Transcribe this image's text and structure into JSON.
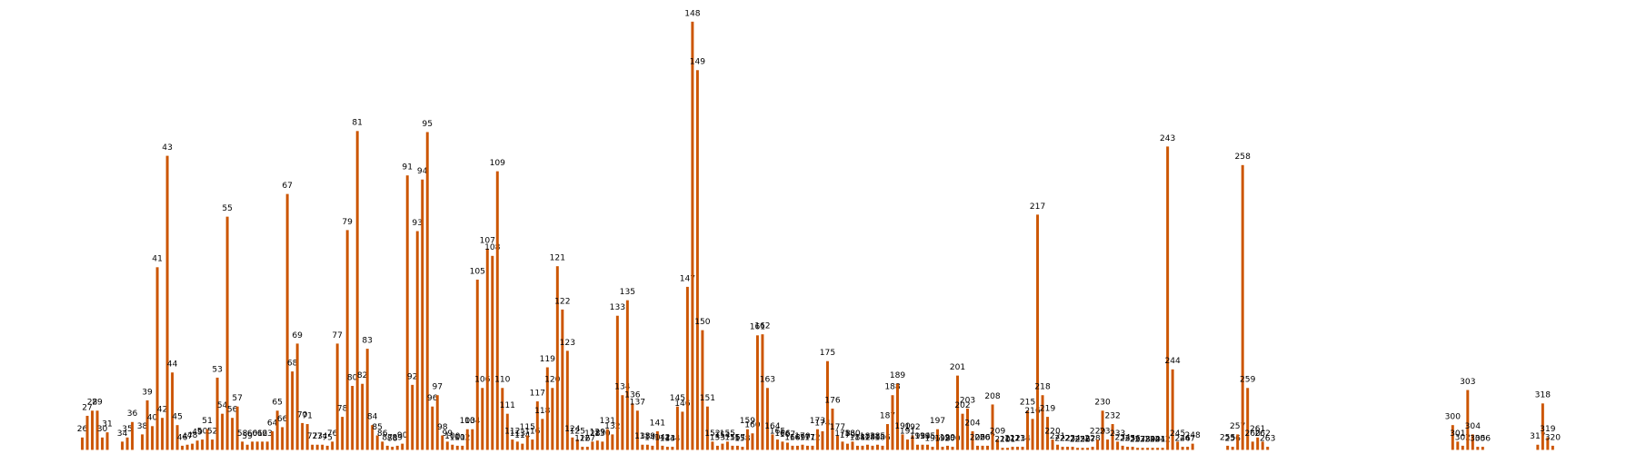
{
  "chart_data": {
    "type": "bar",
    "color": "#cc5500",
    "xlim": [
      11.2,
      335
    ],
    "ylim": [
      0,
      420
    ],
    "x": [
      26,
      27,
      28,
      29,
      30,
      31,
      34,
      35,
      36,
      38,
      39,
      40,
      41,
      42,
      43,
      44,
      45,
      46,
      47,
      48,
      49,
      50,
      51,
      52,
      53,
      54,
      55,
      56,
      57,
      58,
      59,
      60,
      61,
      62,
      63,
      64,
      65,
      66,
      67,
      68,
      69,
      70,
      71,
      72,
      73,
      74,
      75,
      76,
      77,
      78,
      79,
      80,
      81,
      82,
      83,
      84,
      85,
      86,
      87,
      88,
      89,
      90,
      91,
      92,
      93,
      94,
      95,
      96,
      97,
      98,
      99,
      100,
      101,
      102,
      103,
      104,
      105,
      106,
      107,
      108,
      109,
      110,
      111,
      112,
      113,
      114,
      115,
      116,
      117,
      118,
      119,
      120,
      121,
      122,
      123,
      124,
      125,
      126,
      127,
      128,
      129,
      130,
      131,
      132,
      133,
      134,
      135,
      136,
      137,
      138,
      139,
      140,
      141,
      142,
      143,
      144,
      145,
      146,
      147,
      148,
      149,
      150,
      151,
      152,
      153,
      154,
      155,
      156,
      157,
      158,
      159,
      160,
      161,
      162,
      163,
      164,
      165,
      166,
      167,
      168,
      169,
      170,
      171,
      172,
      173,
      174,
      175,
      176,
      177,
      178,
      179,
      180,
      181,
      182,
      183,
      184,
      185,
      186,
      187,
      188,
      189,
      190,
      191,
      192,
      193,
      194,
      195,
      196,
      197,
      198,
      199,
      200,
      201,
      202,
      203,
      204,
      205,
      206,
      207,
      208,
      209,
      210,
      211,
      212,
      213,
      214,
      215,
      216,
      217,
      218,
      219,
      220,
      221,
      222,
      223,
      224,
      225,
      226,
      227,
      228,
      229,
      230,
      231,
      232,
      233,
      234,
      235,
      236,
      237,
      238,
      239,
      240,
      241,
      242,
      243,
      244,
      245,
      246,
      247,
      248,
      255,
      256,
      257,
      258,
      259,
      260,
      261,
      262,
      263,
      300,
      301,
      302,
      303,
      304,
      305,
      306,
      317,
      318,
      319,
      320
    ],
    "values": [
      12,
      33,
      38,
      38,
      12,
      17,
      8,
      12,
      27,
      15,
      48,
      23,
      177,
      31,
      285,
      75,
      24,
      4,
      5,
      6,
      9,
      10,
      20,
      10,
      70,
      35,
      226,
      31,
      42,
      8,
      5,
      8,
      8,
      8,
      8,
      18,
      38,
      22,
      248,
      76,
      103,
      26,
      25,
      5,
      5,
      5,
      4,
      8,
      103,
      32,
      213,
      62,
      309,
      64,
      98,
      24,
      14,
      8,
      4,
      3,
      4,
      6,
      266,
      63,
      212,
      262,
      308,
      42,
      53,
      14,
      8,
      5,
      4,
      4,
      20,
      20,
      165,
      60,
      195,
      188,
      270,
      60,
      35,
      10,
      8,
      6,
      14,
      10,
      47,
      30,
      80,
      60,
      178,
      136,
      96,
      12,
      10,
      3,
      3,
      8,
      9,
      8,
      20,
      15,
      130,
      53,
      145,
      45,
      38,
      5,
      5,
      4,
      18,
      4,
      3,
      3,
      42,
      37,
      158,
      415,
      368,
      116,
      42,
      8,
      4,
      6,
      8,
      4,
      4,
      3,
      20,
      16,
      111,
      112,
      60,
      15,
      10,
      8,
      7,
      4,
      4,
      5,
      4,
      4,
      20,
      18,
      86,
      40,
      14,
      8,
      6,
      8,
      4,
      4,
      5,
      4,
      5,
      4,
      25,
      53,
      64,
      15,
      10,
      14,
      5,
      5,
      5,
      3,
      20,
      3,
      4,
      3,
      72,
      35,
      40,
      18,
      4,
      4,
      4,
      44,
      10,
      2,
      2,
      3,
      3,
      3,
      38,
      30,
      228,
      53,
      32,
      10,
      5,
      3,
      3,
      3,
      2,
      2,
      2,
      3,
      10,
      38,
      10,
      25,
      8,
      4,
      3,
      3,
      2,
      2,
      2,
      2,
      2,
      2,
      294,
      78,
      8,
      3,
      3,
      6,
      4,
      3,
      15,
      276,
      60,
      8,
      12,
      8,
      3,
      24,
      8,
      4,
      58,
      15,
      3,
      3,
      5,
      45,
      12,
      4
    ]
  }
}
